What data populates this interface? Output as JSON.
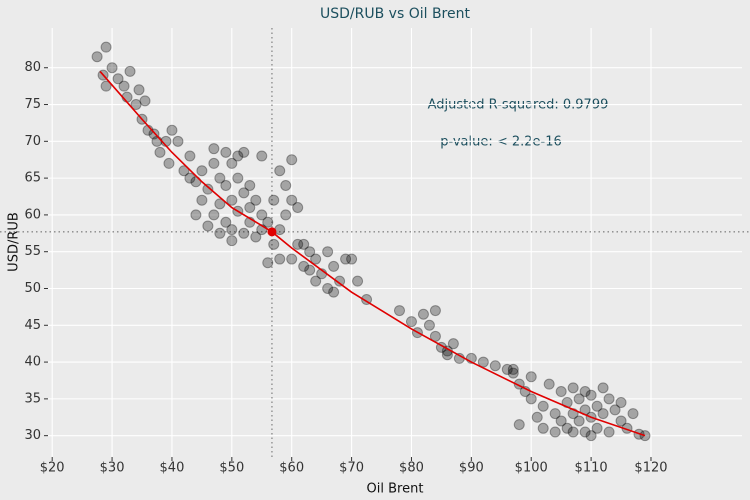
{
  "chart_data": {
    "type": "scatter",
    "title": "USD/RUB vs Oil Brent",
    "x_label": "Oil Brent",
    "y_label": "USD/RUB",
    "xlim": [
      19.3,
      135.2
    ],
    "ylim": [
      27.1,
      85.4
    ],
    "xticks": [
      {
        "value": 20,
        "label": "$20"
      },
      {
        "value": 30,
        "label": "$30"
      },
      {
        "value": 40,
        "label": "$40"
      },
      {
        "value": 50,
        "label": "$50"
      },
      {
        "value": 60,
        "label": "$60"
      },
      {
        "value": 70,
        "label": "$70"
      },
      {
        "value": 80,
        "label": "$80"
      },
      {
        "value": 90,
        "label": "$90"
      },
      {
        "value": 100,
        "label": "$100"
      },
      {
        "value": 110,
        "label": "$110"
      },
      {
        "value": 120,
        "label": "$120"
      }
    ],
    "yticks": [
      30,
      35,
      40,
      45,
      50,
      55,
      60,
      65,
      70,
      75,
      80
    ],
    "grid": true,
    "color": "#000000",
    "x": [
      27.5,
      29,
      28.5,
      29,
      30,
      31,
      32,
      32.5,
      33,
      34,
      34.5,
      35,
      35.5,
      36,
      37,
      37.5,
      38,
      39,
      40,
      41,
      39.5,
      42,
      43,
      44,
      45,
      45,
      46,
      47,
      47,
      48,
      48,
      49,
      49,
      50,
      50,
      50,
      51,
      51,
      52,
      52,
      53,
      53,
      54,
      54,
      55,
      55,
      56,
      46,
      44,
      48,
      50,
      52,
      53,
      55,
      47,
      49,
      51,
      43,
      57,
      58,
      59,
      60,
      60,
      61,
      59,
      58,
      57,
      58,
      56,
      60,
      61,
      62,
      62,
      63,
      64,
      64,
      65,
      66,
      67,
      68,
      69,
      70,
      71,
      72.5,
      66,
      63,
      67,
      78,
      80,
      81,
      82,
      83,
      84,
      85,
      86,
      87,
      88,
      84,
      86,
      90,
      92,
      94,
      96,
      97,
      97,
      98,
      99,
      100,
      100,
      101,
      102,
      102,
      103,
      104,
      104,
      105,
      105,
      106,
      106,
      107,
      107,
      107,
      108,
      108,
      109,
      109,
      109,
      110,
      110,
      111,
      111,
      112,
      112,
      113,
      113,
      114,
      115,
      115,
      116,
      117,
      118,
      119,
      98,
      110
    ],
    "values": [
      81.5,
      82.8,
      79,
      77.5,
      80,
      78.5,
      77.5,
      76,
      79.5,
      75,
      77,
      73,
      75.5,
      71.5,
      71,
      70,
      68.5,
      70,
      71.5,
      70,
      67,
      66,
      65,
      64.5,
      66,
      62,
      63.5,
      67,
      60,
      65,
      61.5,
      64,
      59,
      67,
      62,
      58,
      65,
      60.5,
      63,
      57.5,
      61,
      59,
      62,
      57,
      60,
      58,
      59,
      58.5,
      60,
      57.5,
      56.5,
      68.5,
      64,
      68,
      69,
      68.5,
      68,
      68,
      62,
      66,
      64,
      67.5,
      62,
      61,
      60,
      58,
      56,
      54,
      53.5,
      54,
      56,
      53,
      56,
      55,
      54,
      51,
      52,
      50,
      53,
      51,
      54,
      54,
      51,
      48.5,
      55,
      52.5,
      49.5,
      47,
      45.5,
      44,
      46.5,
      45,
      43.5,
      42,
      41,
      42.5,
      40.5,
      47,
      41.5,
      40.5,
      40,
      39.5,
      39,
      38.5,
      39,
      37,
      36,
      38,
      35,
      32.5,
      34,
      31,
      37,
      33,
      30.5,
      36,
      32,
      34.5,
      31,
      36.5,
      33,
      30.5,
      35,
      32,
      36,
      33.5,
      30.5,
      35.5,
      32.5,
      34,
      31,
      36.5,
      33,
      35,
      30.5,
      33.5,
      32,
      34.5,
      31,
      33,
      30.2,
      30,
      31.5,
      30
    ],
    "fit": {
      "color": "#e00000",
      "x": [
        28,
        35,
        40,
        45,
        50,
        56.7,
        60,
        70,
        80,
        90,
        100,
        110,
        119
      ],
      "values": [
        79.5,
        73,
        68.5,
        64.5,
        61,
        57.7,
        55.5,
        49.5,
        44.5,
        40,
        36,
        32.5,
        30
      ]
    },
    "mean": {
      "color": "#e00000",
      "x": 56.7,
      "y": 57.7
    },
    "annotations": [
      "Adjusted R-squared:  0.9799",
      "p-value: < 2.2e-16"
    ]
  }
}
